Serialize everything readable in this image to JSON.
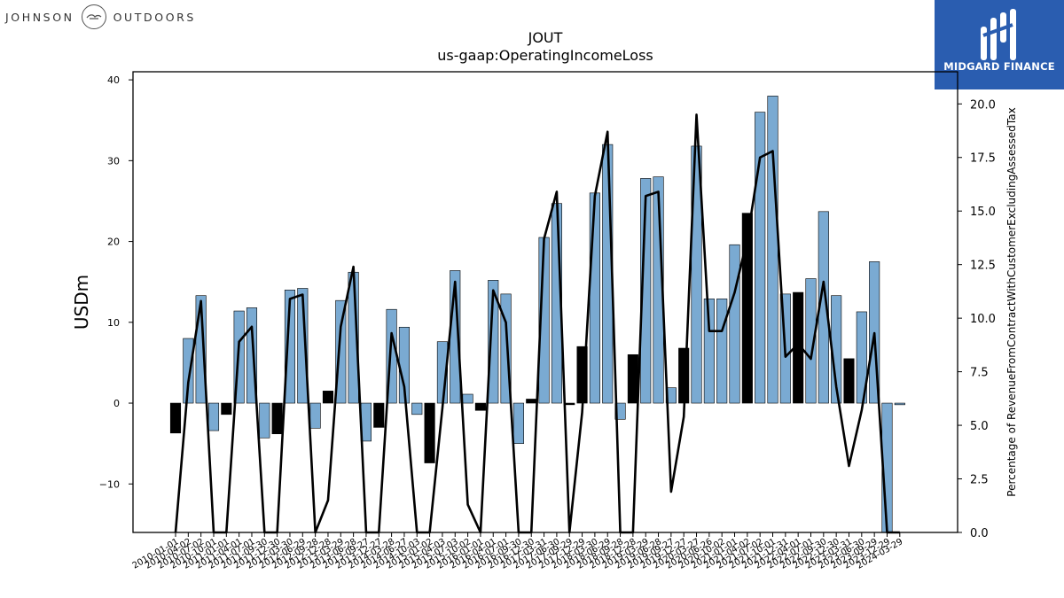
{
  "brand": {
    "left_word_1": "JOHNSON",
    "left_word_2": "OUTDOORS",
    "right_name": "MIDGARD FINANCE"
  },
  "chart_data": {
    "type": "bar",
    "title": "JOUT",
    "subtitle": "us-gaap:OperatingIncomeLoss",
    "ylabel": "USDm",
    "y2label": "Percentage of RevenueFromContractWithCustomerExcludingAssessedTax",
    "ylim": [
      -16,
      41
    ],
    "y2lim": [
      0,
      21.5
    ],
    "yticks": [
      -10,
      0,
      10,
      20,
      30,
      40
    ],
    "y2ticks": [
      0.0,
      2.5,
      5.0,
      7.5,
      10.0,
      12.5,
      15.0,
      17.5,
      20.0
    ],
    "y2_tick_labels": [
      "0.0",
      "2.5",
      "5.0",
      "7.5",
      "10.0",
      "12.5",
      "15.0",
      "17.5",
      "20.0"
    ],
    "grid": false,
    "colors": {
      "bar": "#7aaad2",
      "bar_highlight": "#000000",
      "line": "#000000"
    },
    "x_tick_labels": [
      "2010-01-01",
      "2010-04-02",
      "2010-07-02",
      "2010-10-01",
      "2011-01-01",
      "2011-04-01",
      "2011-07-01",
      "2011-09-30",
      "2011-12-30",
      "2012-03-30",
      "2012-06-29",
      "2012-09-28",
      "2012-12-28",
      "2013-03-29",
      "2013-06-28",
      "2013-09-27",
      "2013-12-27",
      "2014-03-28",
      "2014-06-27",
      "2014-10-03",
      "2015-01-02",
      "2015-04-03",
      "2015-07-03",
      "2015-10-02",
      "2016-01-01",
      "2016-04-01",
      "2016-07-01",
      "2016-09-30",
      "2016-12-30",
      "2017-03-31",
      "2017-06-30",
      "2017-09-29",
      "2017-12-29",
      "2018-03-30",
      "2018-06-29",
      "2018-09-28",
      "2018-12-28",
      "2019-03-29",
      "2019-06-28",
      "2019-09-27",
      "2019-12-27",
      "2020-03-27",
      "2020-06-26",
      "2020-10-02",
      "2021-01-01",
      "2021-04-02",
      "2021-07-02",
      "2021-10-01",
      "2021-12-31",
      "2022-04-01",
      "2022-07-01",
      "2022-09-30",
      "2022-12-30",
      "2023-03-31",
      "2023-06-30",
      "2023-09-29",
      "2023-12-29",
      "2024-03-29"
    ],
    "values": [
      -3.7,
      8.0,
      13.3,
      -3.4,
      -1.4,
      11.4,
      11.8,
      -4.3,
      -3.8,
      14.0,
      14.2,
      -3.1,
      1.5,
      12.7,
      16.2,
      -4.7,
      -3.0,
      11.6,
      9.4,
      -1.4,
      -7.4,
      7.6,
      16.4,
      1.1,
      -0.9,
      15.2,
      13.5,
      -5.0,
      0.5,
      20.5,
      24.7,
      -0.2,
      7.0,
      26.0,
      32.0,
      -2.0,
      6.0,
      27.8,
      28.0,
      1.9,
      6.8,
      31.8,
      12.9,
      12.9,
      19.6,
      23.5,
      36.0,
      38.0,
      13.5,
      13.7,
      15.4,
      23.7,
      13.3,
      5.5,
      11.3,
      17.5,
      -16.0,
      -0.2
    ],
    "highlight": [
      true,
      false,
      false,
      false,
      true,
      false,
      false,
      false,
      true,
      false,
      false,
      false,
      true,
      false,
      false,
      false,
      true,
      false,
      false,
      false,
      true,
      false,
      false,
      false,
      true,
      false,
      false,
      false,
      true,
      false,
      false,
      true,
      true,
      false,
      false,
      false,
      true,
      false,
      false,
      false,
      true,
      false,
      false,
      false,
      false,
      true,
      false,
      false,
      false,
      true,
      false,
      false,
      false,
      true,
      false,
      false,
      false,
      false
    ],
    "series_pct": [
      0,
      7.0,
      10.8,
      0,
      0,
      8.9,
      9.6,
      0,
      0,
      10.9,
      11.1,
      0,
      1.5,
      9.6,
      12.4,
      0,
      0,
      9.3,
      6.8,
      0,
      0,
      5.8,
      11.7,
      1.3,
      0,
      11.3,
      9.8,
      0,
      0,
      13.7,
      15.9,
      0,
      5.6,
      15.7,
      18.7,
      0,
      0,
      15.7,
      15.9,
      1.9,
      5.4,
      19.5,
      9.4,
      9.4,
      11.2,
      13.7,
      17.5,
      17.8,
      8.2,
      8.8,
      8.1,
      11.7,
      6.8,
      3.1,
      5.7,
      9.3,
      0,
      0
    ]
  }
}
